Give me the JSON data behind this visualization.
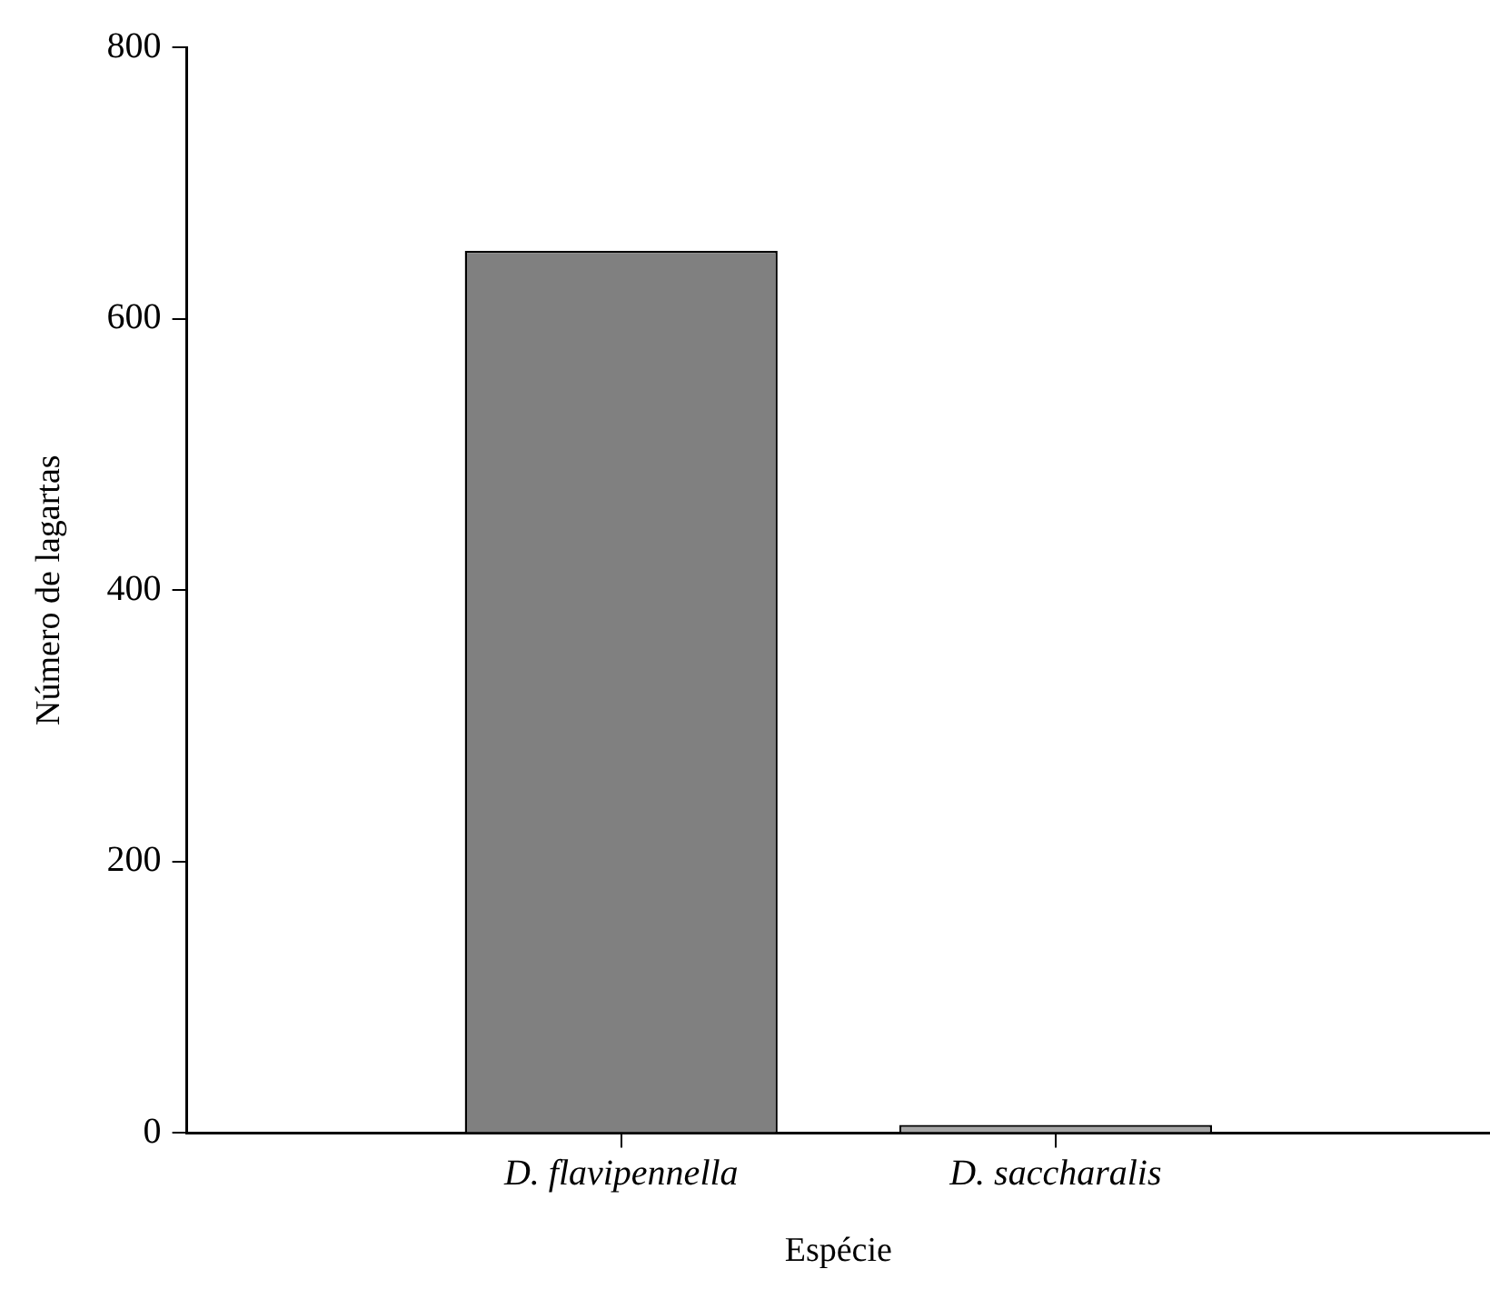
{
  "chart_data": {
    "type": "bar",
    "xlabel": "Espécie",
    "ylabel": "Número de lagartas",
    "categories": [
      "D. flavipennella",
      "D. saccharalis"
    ],
    "values": [
      650,
      6
    ],
    "colors": [
      "#808080",
      "#a6a6a6"
    ],
    "ylim": [
      0,
      800
    ],
    "yticks": [
      0,
      200,
      400,
      600,
      800
    ],
    "grid": false,
    "legend": false
  }
}
